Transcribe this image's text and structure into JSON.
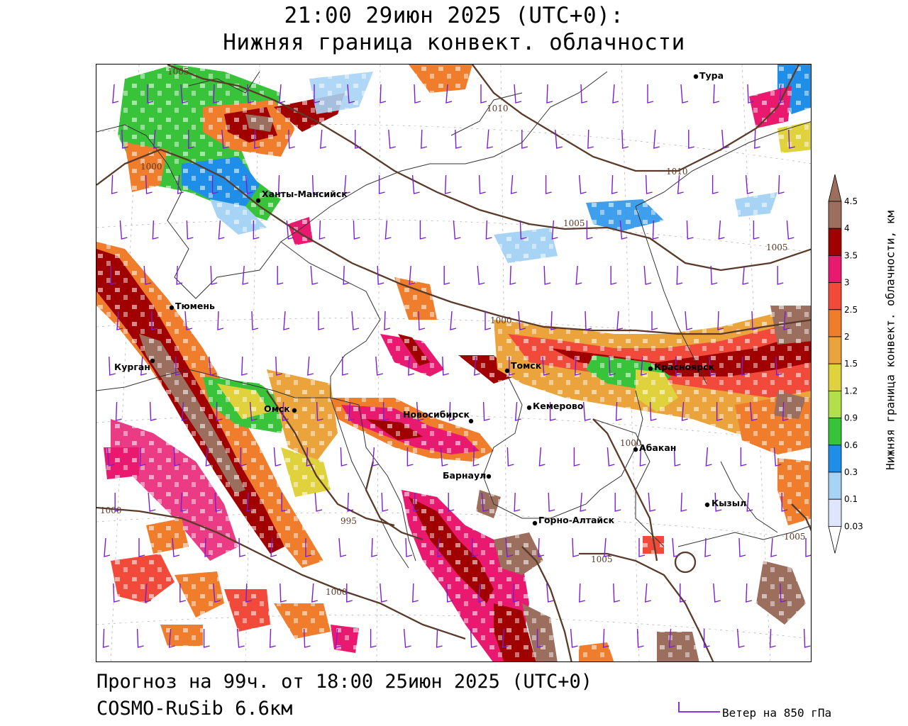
{
  "header": {
    "line1": "21:00 29июн 2025 (UTC+0):",
    "line2": "Нижняя граница конвект. облачности"
  },
  "footer": {
    "forecast": "Прогноз на 99ч. от 18:00 25июн 2025 (UTC+0)",
    "model": "COSMO-RuSib 6.6км"
  },
  "wind_legend": {
    "label": "Ветер на 850 гПа",
    "color": "#7a1fd0"
  },
  "colorbar": {
    "title": "Нижняя граница конвект. облачности, км",
    "ticks": [
      "4.5",
      "4",
      "3.5",
      "3",
      "2.5",
      "2",
      "1.5",
      "1.2",
      "0.9",
      "0.6",
      "0.3",
      "0.1",
      "0.03"
    ],
    "colors": [
      "#9b6e5e",
      "#a00000",
      "#e8196e",
      "#f1493a",
      "#f07d2c",
      "#eba43c",
      "#e0d23c",
      "#b2e04a",
      "#39c33b",
      "#1e8ee9",
      "#a7d3f5",
      "#dfe5fa"
    ]
  },
  "cities": [
    {
      "name": "Тура"
    },
    {
      "name": "Ханты-Мансийск"
    },
    {
      "name": "Тюмень"
    },
    {
      "name": "Курган"
    },
    {
      "name": "Омск"
    },
    {
      "name": "Новосибирск"
    },
    {
      "name": "Томск"
    },
    {
      "name": "Кемерово"
    },
    {
      "name": "Красноярск"
    },
    {
      "name": "Абакан"
    },
    {
      "name": "Барнаул"
    },
    {
      "name": "Горно-Алтайск"
    },
    {
      "name": "Кызыл"
    }
  ],
  "isobar_labels": [
    "1005",
    "1010",
    "1000",
    "1010",
    "1005",
    "1005",
    "1000",
    "1000",
    "995",
    "1000",
    "1005",
    "1000",
    "1005"
  ],
  "colors": {
    "isobar": "#5a3b2a",
    "boundary": "#333333",
    "graticule": "#b0b0b0"
  }
}
